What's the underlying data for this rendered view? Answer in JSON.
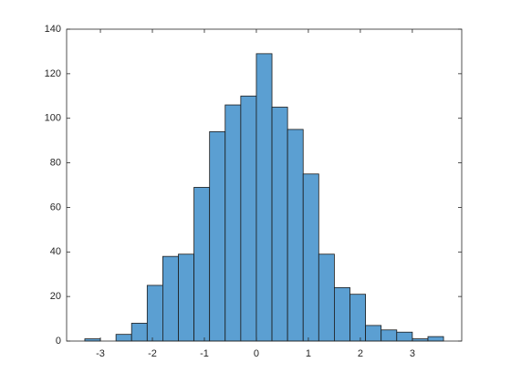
{
  "chart_data": {
    "type": "histogram",
    "bins": [
      -3.3,
      -3.0,
      -2.7,
      -2.4,
      -2.1,
      -1.8,
      -1.5,
      -1.2,
      -0.9,
      -0.6,
      -0.3,
      0,
      0.3,
      0.6,
      0.9,
      1.2,
      1.5,
      1.8,
      2.1,
      2.4,
      2.7,
      3.0,
      3.3,
      3.6
    ],
    "counts": [
      1,
      0,
      3,
      8,
      25,
      38,
      39,
      69,
      94,
      106,
      110,
      129,
      105,
      95,
      75,
      39,
      24,
      21,
      7,
      5,
      4,
      1,
      2
    ],
    "color": "#5b9fd2",
    "xlim": [
      -3.65,
      3.95
    ],
    "xticks": [
      -3,
      -2,
      -1,
      0,
      1,
      2,
      3
    ],
    "ylim": [
      0,
      140
    ],
    "yticks": [
      0,
      20,
      40,
      60,
      80,
      100,
      120,
      140
    ]
  }
}
